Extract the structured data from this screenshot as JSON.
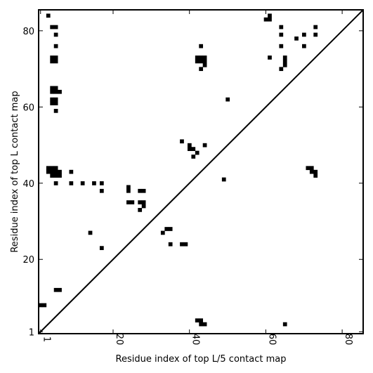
{
  "chart_data": {
    "type": "heatmap",
    "xlabel": "Residue index of top L/5 contact map",
    "ylabel": "Residue index of top L contact map",
    "xlim": [
      0.5,
      85.5
    ],
    "ylim": [
      0.5,
      85.5
    ],
    "x_ticks": [
      1,
      20,
      40,
      60,
      80
    ],
    "x_tick_labels": [
      "1",
      "20",
      "40",
      "60",
      "80"
    ],
    "y_ticks": [
      1,
      20,
      40,
      60,
      80
    ],
    "y_tick_labels": [
      "1",
      "20",
      "40",
      "60",
      "80"
    ],
    "diagonal": true,
    "grid": false,
    "color": "#000000",
    "contacts": [
      [
        3,
        84
      ],
      [
        4,
        81
      ],
      [
        5,
        81
      ],
      [
        5,
        79
      ],
      [
        5,
        76
      ],
      [
        4,
        73
      ],
      [
        5,
        73
      ],
      [
        4,
        72
      ],
      [
        5,
        72
      ],
      [
        4,
        65
      ],
      [
        5,
        65
      ],
      [
        4,
        64
      ],
      [
        5,
        64
      ],
      [
        6,
        64
      ],
      [
        4,
        62
      ],
      [
        5,
        62
      ],
      [
        4,
        61
      ],
      [
        5,
        61
      ],
      [
        5,
        59
      ],
      [
        3,
        44
      ],
      [
        4,
        44
      ],
      [
        5,
        44
      ],
      [
        3,
        43
      ],
      [
        4,
        43
      ],
      [
        5,
        43
      ],
      [
        6,
        43
      ],
      [
        4,
        42
      ],
      [
        5,
        42
      ],
      [
        6,
        42
      ],
      [
        5,
        40
      ],
      [
        9,
        43
      ],
      [
        9,
        40
      ],
      [
        12,
        40
      ],
      [
        15,
        40
      ],
      [
        17,
        40
      ],
      [
        17,
        38
      ],
      [
        14,
        27
      ],
      [
        17,
        23
      ],
      [
        24,
        39
      ],
      [
        24,
        38
      ],
      [
        24,
        35
      ],
      [
        25,
        35
      ],
      [
        27,
        38
      ],
      [
        28,
        38
      ],
      [
        27,
        35
      ],
      [
        28,
        35
      ],
      [
        28,
        34
      ],
      [
        27,
        33
      ],
      [
        34,
        28
      ],
      [
        35,
        28
      ],
      [
        33,
        27
      ],
      [
        35,
        24
      ],
      [
        38,
        24
      ],
      [
        39,
        24
      ],
      [
        38,
        51
      ],
      [
        40,
        50
      ],
      [
        40,
        49
      ],
      [
        41,
        49
      ],
      [
        42,
        48
      ],
      [
        41,
        47
      ],
      [
        44,
        50
      ],
      [
        43,
        76
      ],
      [
        42,
        73
      ],
      [
        43,
        73
      ],
      [
        44,
        73
      ],
      [
        42,
        72
      ],
      [
        43,
        72
      ],
      [
        44,
        72
      ],
      [
        44,
        71
      ],
      [
        43,
        70
      ],
      [
        50,
        62
      ],
      [
        49,
        41
      ],
      [
        60,
        83
      ],
      [
        61,
        83
      ],
      [
        61,
        84
      ],
      [
        64,
        81
      ],
      [
        64,
        79
      ],
      [
        64,
        76
      ],
      [
        61,
        73
      ],
      [
        65,
        73
      ],
      [
        65,
        72
      ],
      [
        65,
        71
      ],
      [
        64,
        70
      ],
      [
        68,
        78
      ],
      [
        70,
        79
      ],
      [
        70,
        76
      ],
      [
        73,
        81
      ],
      [
        73,
        79
      ],
      [
        71,
        44
      ],
      [
        72,
        44
      ],
      [
        72,
        43
      ],
      [
        73,
        43
      ],
      [
        73,
        42
      ],
      [
        1,
        8
      ],
      [
        2,
        8
      ],
      [
        5,
        12
      ],
      [
        6,
        12
      ],
      [
        42,
        4
      ],
      [
        43,
        4
      ],
      [
        43,
        3
      ],
      [
        44,
        3
      ],
      [
        65,
        3
      ]
    ]
  }
}
